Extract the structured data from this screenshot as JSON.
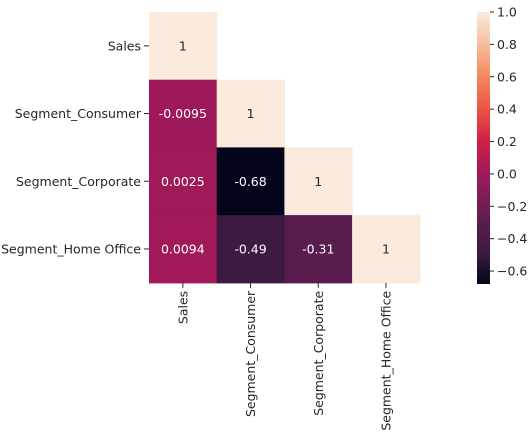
{
  "chart_data": {
    "type": "heatmap",
    "mask": "upper-triangle",
    "rows": [
      "Sales",
      "Segment_Consumer",
      "Segment_Corporate",
      "Segment_Home Office"
    ],
    "columns": [
      "Sales",
      "Segment_Consumer",
      "Segment_Corporate",
      "Segment_Home Office"
    ],
    "values": [
      [
        1,
        null,
        null,
        null
      ],
      [
        -0.0095,
        1,
        null,
        null
      ],
      [
        0.0025,
        -0.68,
        1,
        null
      ],
      [
        0.0094,
        -0.49,
        -0.31,
        1
      ]
    ],
    "cell_labels": [
      [
        "1",
        "",
        "",
        ""
      ],
      [
        "-0.0095",
        "1",
        "",
        ""
      ],
      [
        "0.0025",
        "-0.68",
        "1",
        ""
      ],
      [
        "0.0094",
        "-0.49",
        "-0.31",
        "1"
      ]
    ],
    "colormap": "rocket",
    "colorbar": {
      "vmin": -0.68,
      "vmax": 1.0,
      "ticks": [
        1.0,
        0.8,
        0.6,
        0.4,
        0.2,
        0.0,
        -0.2,
        -0.4,
        -0.6
      ],
      "tick_labels": [
        "1.0",
        "0.8",
        "0.6",
        "0.4",
        "0.2",
        "0.0",
        "−0.2",
        "−0.4",
        "−0.6"
      ]
    },
    "colors": {
      "-0.68": "#03051a",
      "-0.49": "#3d1a42",
      "-0.31": "#581c4e",
      "0.0": "#9f1959",
      "1.0": "#faebdd"
    }
  }
}
